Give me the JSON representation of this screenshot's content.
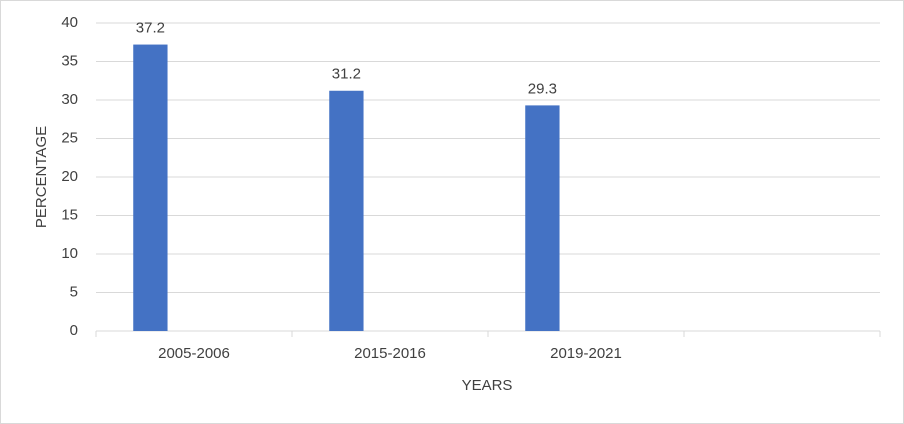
{
  "chart_data": {
    "type": "bar",
    "categories": [
      "2005-2006",
      "2015-2016",
      "2019-2021",
      null
    ],
    "values": [
      37.2,
      31.2,
      29.3,
      null
    ],
    "color": "#4472c4",
    "x_label": "YEARS",
    "y_label": "PERCENTAGE",
    "ylim": [
      0,
      40
    ],
    "yticks": [
      0,
      5,
      10,
      15,
      20,
      25,
      30,
      35,
      40
    ],
    "grid": true
  }
}
